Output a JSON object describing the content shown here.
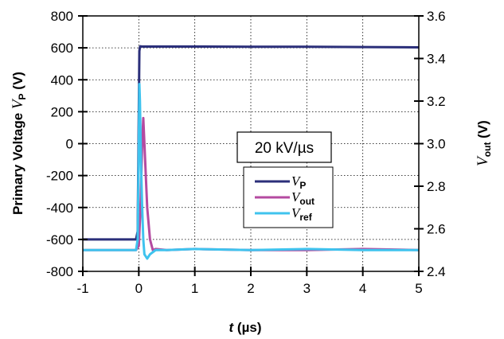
{
  "chart_data": {
    "type": "line",
    "x_axis": {
      "label_var": "t",
      "label_unit": " (µs)",
      "range": [
        -1,
        5
      ],
      "ticks": [
        -1,
        0,
        1,
        2,
        3,
        4,
        5
      ],
      "tick_labels": [
        "-1",
        "0",
        "1",
        "2",
        "3",
        "4",
        "5"
      ]
    },
    "y_axis_left": {
      "label_text": "Primary Voltage ",
      "label_var": "V",
      "label_sub": "P",
      "label_unit": " (V)",
      "range": [
        -800,
        800
      ],
      "ticks": [
        -800,
        -600,
        -400,
        -200,
        0,
        200,
        400,
        600,
        800
      ],
      "tick_labels": [
        "-800",
        "-600",
        "-400",
        "-200",
        "0",
        "200",
        "400",
        "600",
        "800"
      ]
    },
    "y_axis_right": {
      "label_var": "V",
      "label_sub": "out",
      "label_unit": "  (V)",
      "range": [
        2.4,
        3.6
      ],
      "ticks": [
        2.4,
        2.6,
        2.8,
        3.0,
        3.2,
        3.4,
        3.6
      ],
      "tick_labels": [
        "2.4",
        "2.6",
        "2.8",
        "3.0",
        "3.2",
        "3.4",
        "3.6"
      ]
    },
    "grid": true,
    "annotation": "20 kV/µs",
    "legend_position": "center-right",
    "series": [
      {
        "name_var": "V",
        "name_sub": "P",
        "axis": "left",
        "color": "#2b2f7a",
        "x": [
          -1,
          -0.05,
          -0.02,
          0.0,
          0.01,
          0.02,
          0.03,
          0.05,
          1,
          2,
          3,
          4,
          5
        ],
        "y": [
          -600,
          -600,
          -550,
          200,
          580,
          605,
          610,
          608,
          608,
          607,
          607,
          605,
          603
        ]
      },
      {
        "name_var": "V",
        "name_sub": "out",
        "axis": "right",
        "color": "#b44aa0",
        "x": [
          -1,
          -0.05,
          0.0,
          0.03,
          0.06,
          0.08,
          0.1,
          0.15,
          0.2,
          0.25,
          0.3,
          0.5,
          1,
          2,
          3,
          4,
          5
        ],
        "y": [
          2.5,
          2.5,
          2.52,
          2.7,
          3.0,
          3.12,
          3.0,
          2.7,
          2.55,
          2.5,
          2.505,
          2.5,
          2.505,
          2.5,
          2.5,
          2.505,
          2.5
        ]
      },
      {
        "name_var": "V",
        "name_sub": "ref",
        "axis": "right",
        "color": "#3fc3ee",
        "x": [
          -1,
          -0.05,
          -0.02,
          0.0,
          0.01,
          0.02,
          0.04,
          0.06,
          0.08,
          0.1,
          0.15,
          0.2,
          0.3,
          0.5,
          1,
          2,
          3,
          4,
          5
        ],
        "y": [
          2.5,
          2.5,
          2.55,
          3.0,
          3.28,
          3.2,
          2.9,
          2.7,
          2.55,
          2.48,
          2.46,
          2.48,
          2.5,
          2.5,
          2.505,
          2.5,
          2.505,
          2.5,
          2.5
        ]
      }
    ]
  }
}
